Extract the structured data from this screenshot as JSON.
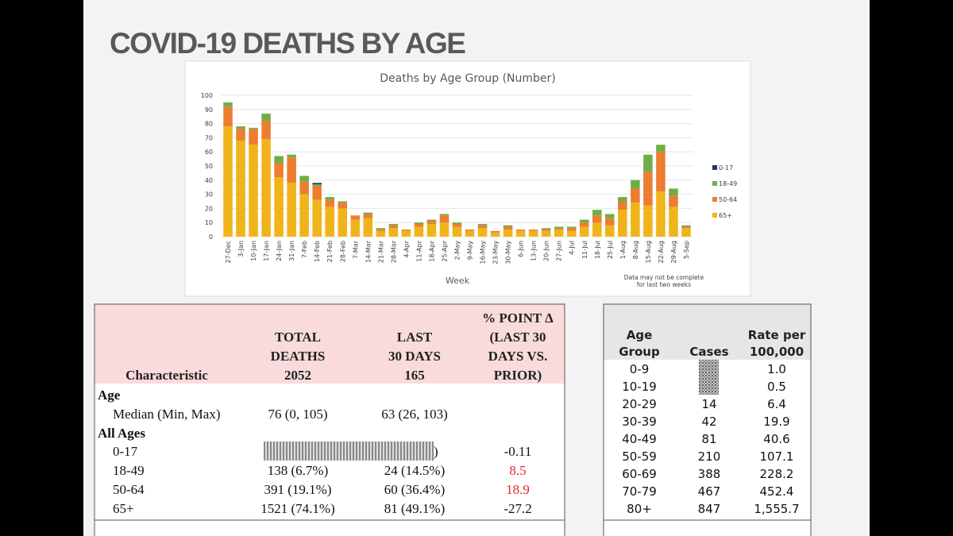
{
  "header": {
    "title": "COVID-19 DEATHS BY AGE"
  },
  "chart_data": {
    "type": "stacked_bar",
    "title": "Deaths by Age Group (Number)",
    "x_label": "Week",
    "note": [
      "Data may not be complete",
      "for last two weeks"
    ],
    "categories": [
      "27-Dec",
      "3-Jan",
      "10-Jan",
      "17-Jan",
      "24-Jan",
      "31-Jan",
      "7-Feb",
      "14-Feb",
      "21-Feb",
      "28-Feb",
      "7-Mar",
      "14-Mar",
      "21-Mar",
      "28-Mar",
      "4-Apr",
      "11-Apr",
      "18-Apr",
      "25-Apr",
      "2-May",
      "9-May",
      "16-May",
      "23-May",
      "30-May",
      "6-Jun",
      "13-Jun",
      "20-Jun",
      "27-Jun",
      "4-Jul",
      "11-Jul",
      "18-Jul",
      "25-Jul",
      "1-Aug",
      "8-Aug",
      "15-Aug",
      "22-Aug",
      "29-Aug",
      "5-Sep"
    ],
    "series": [
      {
        "name": "0-17",
        "color": "#1f3864",
        "values": [
          0,
          0,
          0,
          0,
          0,
          0,
          0,
          1,
          0,
          0,
          0,
          0,
          0,
          0,
          0,
          0,
          0,
          0,
          0,
          0,
          0,
          0,
          0,
          0,
          0,
          0,
          0,
          0,
          0,
          0,
          0,
          0,
          0,
          0,
          0,
          0,
          0
        ]
      },
      {
        "name": "18-49",
        "color": "#70ad47",
        "values": [
          3,
          2,
          1,
          5,
          5,
          2,
          4,
          1,
          2,
          1,
          0,
          1,
          1,
          1,
          0,
          1,
          1,
          1,
          1,
          0,
          1,
          0,
          1,
          0,
          0,
          1,
          1,
          1,
          2,
          4,
          3,
          3,
          6,
          12,
          5,
          5,
          1
        ]
      },
      {
        "name": "50-64",
        "color": "#ed7d31",
        "values": [
          14,
          8,
          11,
          13,
          10,
          18,
          9,
          10,
          5,
          4,
          3,
          3,
          1,
          2,
          1,
          2,
          2,
          5,
          2,
          1,
          2,
          1,
          2,
          1,
          1,
          1,
          1,
          2,
          3,
          5,
          5,
          6,
          10,
          24,
          28,
          8,
          1
        ]
      },
      {
        "name": "65+",
        "color": "#f0b41a",
        "values": [
          78,
          68,
          65,
          69,
          42,
          38,
          30,
          26,
          21,
          20,
          12,
          13,
          4,
          6,
          4,
          7,
          9,
          10,
          7,
          4,
          6,
          3,
          5,
          4,
          4,
          4,
          5,
          4,
          7,
          10,
          8,
          19,
          24,
          22,
          32,
          21,
          6
        ]
      }
    ],
    "ylim": [
      0,
      100
    ],
    "yticks": [
      0,
      10,
      20,
      30,
      40,
      50,
      60,
      70,
      80,
      90,
      100
    ],
    "grid": true
  },
  "table": {
    "headers": [
      [
        "Characteristic"
      ],
      [
        "TOTAL",
        "DEATHS",
        "2052"
      ],
      [
        "LAST",
        "30 DAYS",
        "165"
      ],
      [
        "% POINT Δ",
        "(LAST 30",
        "DAYS VS.",
        "PRIOR)"
      ]
    ],
    "rows": [
      {
        "section": "Age"
      },
      {
        "label": "Median (Min, Max)",
        "total": "76 (0, 105)",
        "last30": "63 (26, 103)"
      },
      {
        "section": "All Ages"
      },
      {
        "label": "0-17",
        "last30": ")",
        "change": "-0.11"
      },
      {
        "label": "18-49",
        "total": "138 (6.7%)",
        "last30": "24 (14.5%)",
        "change": "8.5",
        "color": "#e8262b"
      },
      {
        "label": "50-64",
        "total": "391 (19.1%)",
        "last30": "60 (36.4%)",
        "change": "18.9",
        "color": "#e8262b"
      },
      {
        "label": "65+",
        "total": "1521 (74.1%)",
        "last30": "81 (49.1%)",
        "change": "-27.2"
      }
    ]
  },
  "rate_table": {
    "headers": [
      [
        "Age",
        "Group"
      ],
      [
        "Cases"
      ],
      [
        "Rate per",
        "100,000"
      ]
    ],
    "rows": [
      [
        "0-9",
        null,
        "1.0"
      ],
      [
        "10-19",
        null,
        "0.5"
      ],
      [
        "20-29",
        "14",
        "6.4"
      ],
      [
        "30-39",
        "42",
        "19.9"
      ],
      [
        "40-49",
        "81",
        "40.6"
      ],
      [
        "50-59",
        "210",
        "107.1"
      ],
      [
        "60-69",
        "388",
        "228.2"
      ],
      [
        "70-79",
        "467",
        "452.4"
      ],
      [
        "80+",
        "847",
        "1,555.7"
      ]
    ]
  }
}
